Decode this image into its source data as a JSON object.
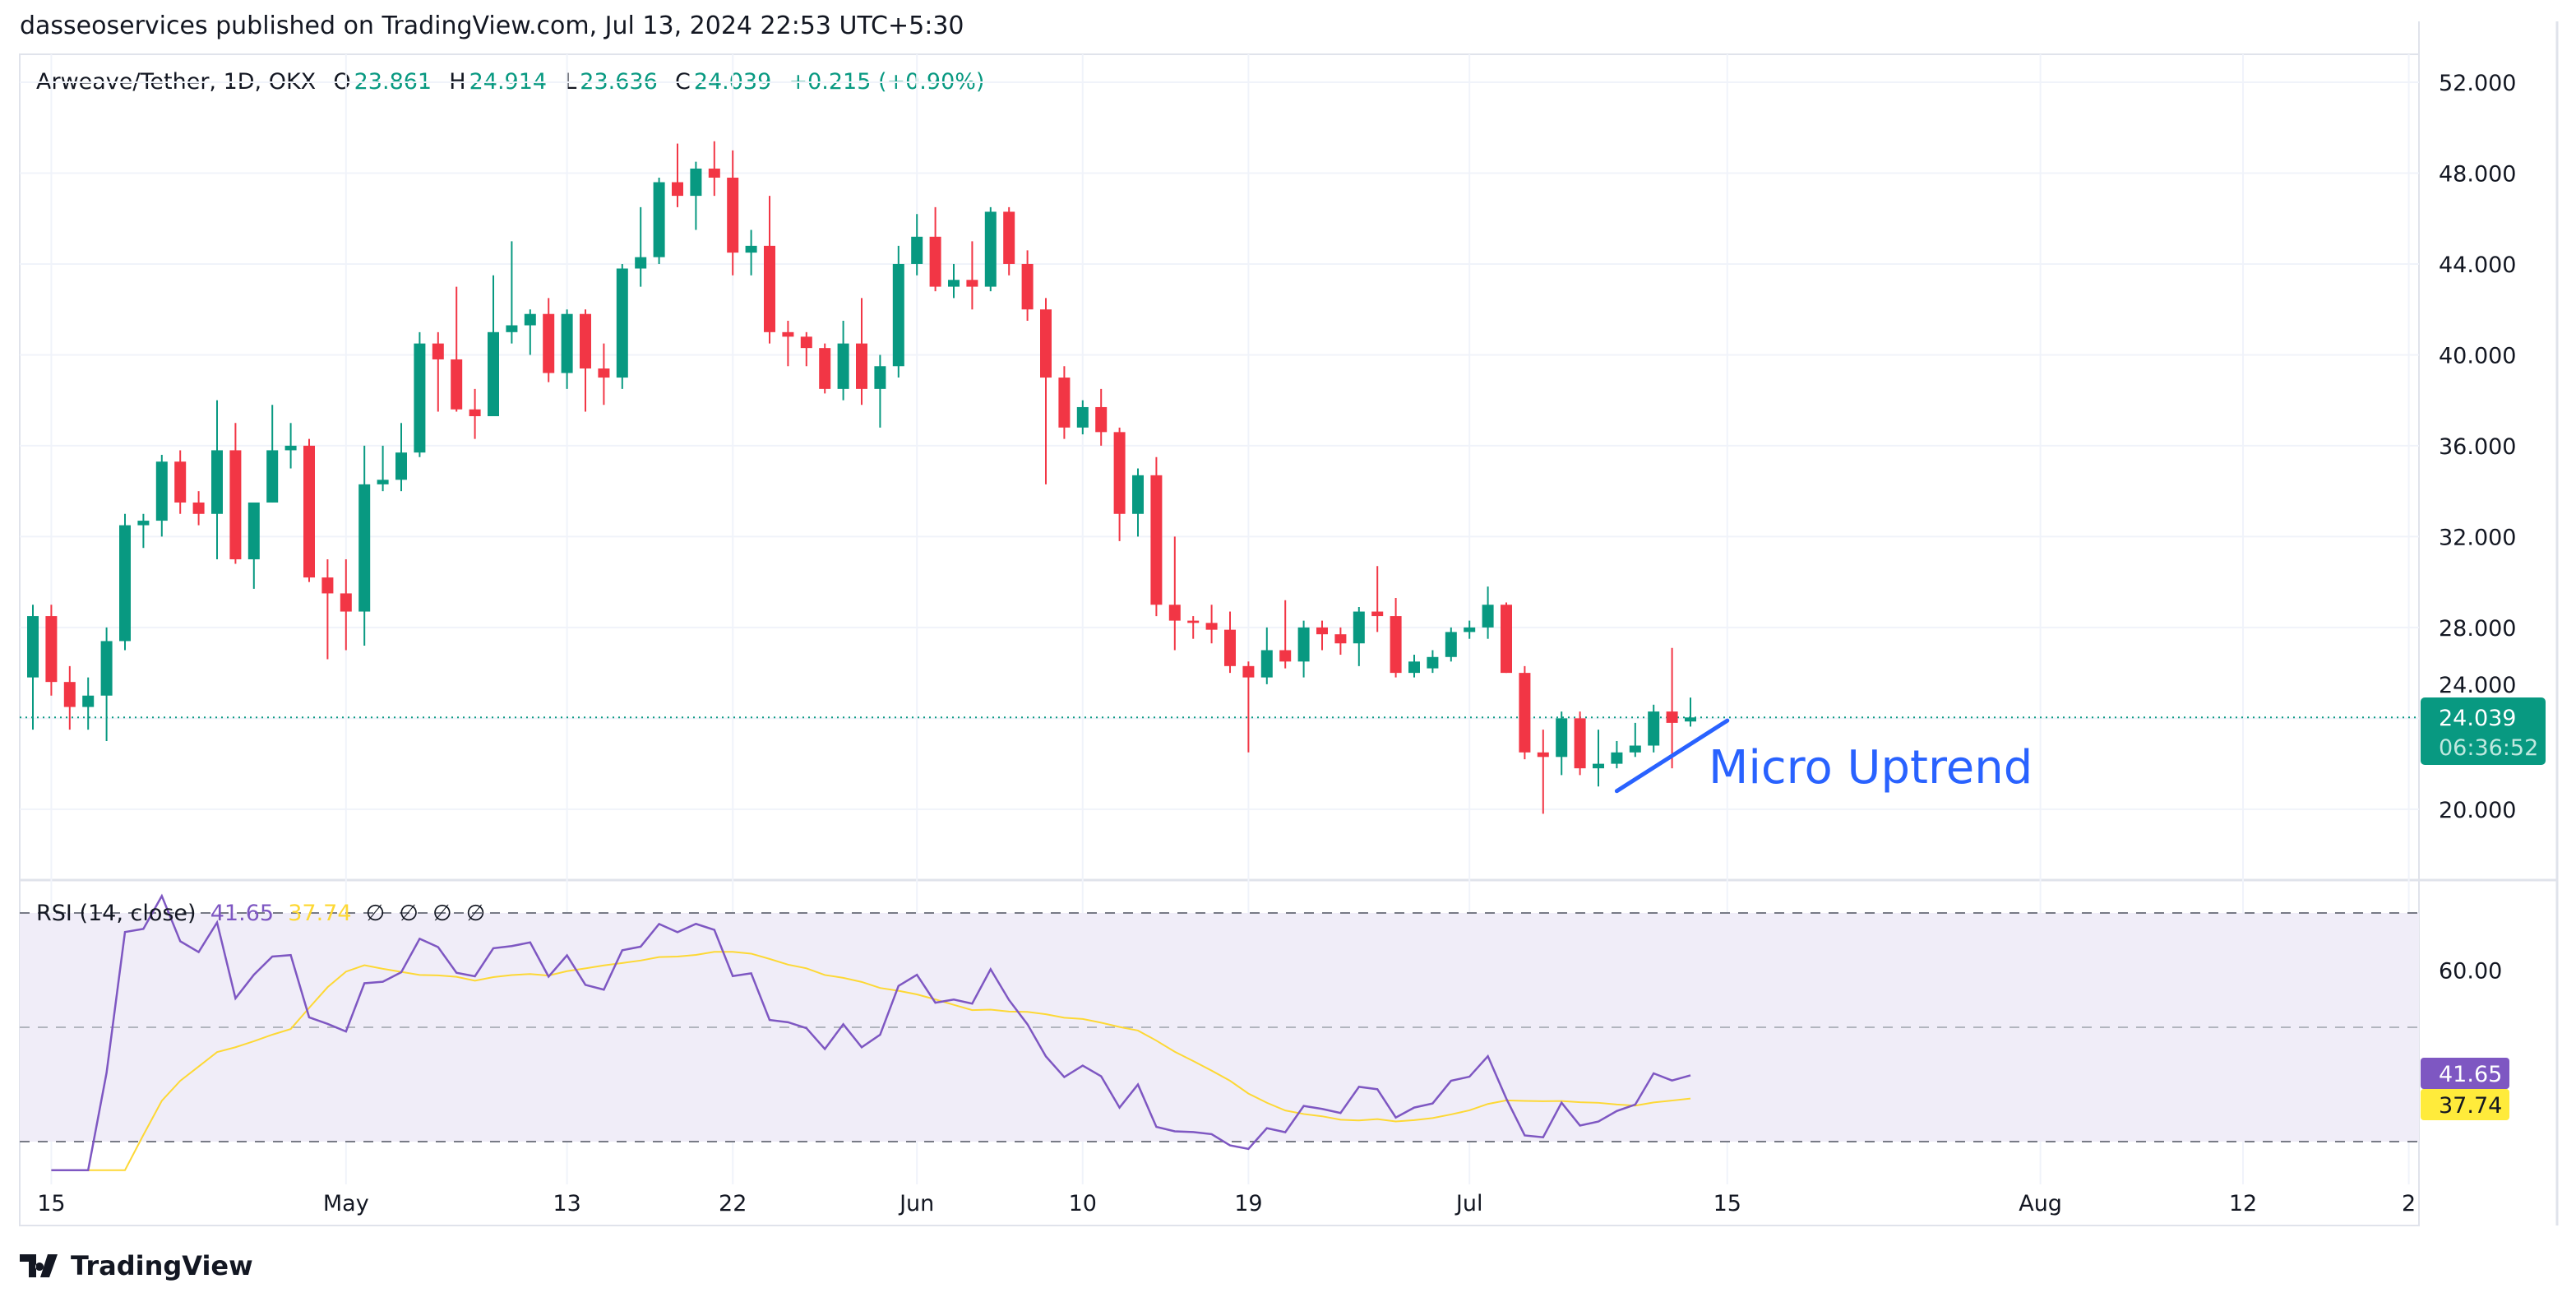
{
  "header": {
    "publisher": "dasseoservices published on TradingView.com, Jul 13, 2024 22:53 UTC+5:30"
  },
  "legend": {
    "symbol": "Arweave/Tether, 1D, OKX",
    "o_label": "O",
    "o": "23.861",
    "h_label": "H",
    "h": "24.914",
    "l_label": "L",
    "l": "23.636",
    "c_label": "C",
    "c": "24.039",
    "change": "+0.215 (+0.90%)"
  },
  "rsi_legend": {
    "name": "RSI (14, close)",
    "rsi": "41.65",
    "ma": "37.74",
    "extras": [
      "∅",
      "∅",
      "∅",
      "∅"
    ]
  },
  "price_badge": {
    "price": "24.039",
    "countdown": "06:36:52"
  },
  "rsi_badges": {
    "rsi": "41.65",
    "ma": "37.74"
  },
  "annotation": {
    "text": "Micro Uptrend"
  },
  "footer": {
    "logo_text": "TradingView"
  },
  "colors": {
    "up": "#089981",
    "down": "#f23645",
    "rsi": "#7e57c2",
    "rsi_ma": "#fdd835",
    "annotation": "#2962ff",
    "rsi_band": "#f0edf8"
  },
  "chart_data": {
    "type": "candlestick",
    "title": "Arweave/Tether, 1D, OKX",
    "start_date": "2024-04-14",
    "yaxis": {
      "ticks": [
        "20.000",
        "24.000",
        "28.000",
        "32.000",
        "36.000",
        "40.000",
        "44.000",
        "48.000",
        "52.000"
      ],
      "range": [
        17,
        54
      ]
    },
    "rsi_axis": {
      "ticks": [
        "60.00"
      ],
      "bands": [
        30,
        50,
        70
      ]
    },
    "xaxis": {
      "ticks": [
        {
          "label": "15",
          "day": 1
        },
        {
          "label": "May",
          "day": 17
        },
        {
          "label": "13",
          "day": 29
        },
        {
          "label": "22",
          "day": 38
        },
        {
          "label": "Jun",
          "day": 48
        },
        {
          "label": "10",
          "day": 57
        },
        {
          "label": "19",
          "day": 66
        },
        {
          "label": "Jul",
          "day": 78
        },
        {
          "label": "15",
          "day": 92
        },
        {
          "label": "Aug",
          "day": 109
        },
        {
          "label": "12",
          "day": 120
        },
        {
          "label": "2",
          "day": 129
        }
      ]
    },
    "ohlc": [
      [
        25.8,
        29,
        23.5,
        28.5
      ],
      [
        28.5,
        29,
        25,
        25.6
      ],
      [
        25.6,
        26.3,
        23.5,
        24.5
      ],
      [
        24.5,
        25.8,
        23.5,
        25
      ],
      [
        25,
        28,
        23,
        27.4
      ],
      [
        27.4,
        33,
        27,
        32.5
      ],
      [
        32.5,
        33,
        31.5,
        32.7
      ],
      [
        32.7,
        35.6,
        32,
        35.3
      ],
      [
        35.3,
        35.8,
        33,
        33.5
      ],
      [
        33.5,
        34,
        32.5,
        33
      ],
      [
        33,
        38,
        31,
        35.8
      ],
      [
        35.8,
        37,
        30.8,
        31
      ],
      [
        31,
        33.5,
        29.7,
        33.5
      ],
      [
        33.5,
        37.8,
        33.5,
        35.8
      ],
      [
        35.8,
        37,
        35,
        36
      ],
      [
        36,
        36.3,
        30,
        30.2
      ],
      [
        30.2,
        31,
        26.6,
        29.5
      ],
      [
        29.5,
        31,
        27,
        28.7
      ],
      [
        28.7,
        36,
        27.2,
        34.3
      ],
      [
        34.3,
        36,
        34,
        34.5
      ],
      [
        34.5,
        37,
        34,
        35.7
      ],
      [
        35.7,
        41,
        35.5,
        40.5
      ],
      [
        40.5,
        41,
        37.5,
        39.8
      ],
      [
        39.8,
        43,
        37.5,
        37.6
      ],
      [
        37.6,
        38.5,
        36.3,
        37.3
      ],
      [
        37.3,
        43.5,
        37.3,
        41
      ],
      [
        41,
        45,
        40.5,
        41.3
      ],
      [
        41.3,
        42,
        40,
        41.8
      ],
      [
        41.8,
        42.5,
        38.8,
        39.2
      ],
      [
        39.2,
        42,
        38.5,
        41.8
      ],
      [
        41.8,
        42,
        37.5,
        39.4
      ],
      [
        39.4,
        40.5,
        37.8,
        39
      ],
      [
        39,
        44,
        38.5,
        43.8
      ],
      [
        43.8,
        46.5,
        43,
        44.3
      ],
      [
        44.3,
        47.8,
        44,
        47.6
      ],
      [
        47.6,
        49.3,
        46.5,
        47
      ],
      [
        47,
        48.5,
        45.5,
        48.2
      ],
      [
        48.2,
        49.4,
        47,
        47.8
      ],
      [
        47.8,
        49,
        43.5,
        44.5
      ],
      [
        44.5,
        45.5,
        43.5,
        44.8
      ],
      [
        44.8,
        47,
        40.5,
        41
      ],
      [
        41,
        41.5,
        39.5,
        40.8
      ],
      [
        40.8,
        41,
        39.5,
        40.3
      ],
      [
        40.3,
        40.5,
        38.3,
        38.5
      ],
      [
        38.5,
        41.5,
        38,
        40.5
      ],
      [
        40.5,
        42.5,
        37.8,
        38.5
      ],
      [
        38.5,
        40,
        36.8,
        39.5
      ],
      [
        39.5,
        44.8,
        39,
        44
      ],
      [
        44,
        46.2,
        43.5,
        45.2
      ],
      [
        45.2,
        46.5,
        42.8,
        43
      ],
      [
        43,
        44,
        42.5,
        43.3
      ],
      [
        43.3,
        45,
        42,
        43
      ],
      [
        43,
        46.5,
        42.8,
        46.3
      ],
      [
        46.3,
        46.5,
        43.5,
        44
      ],
      [
        44,
        44.6,
        41.5,
        42
      ],
      [
        42,
        42.5,
        34.3,
        39
      ],
      [
        39,
        39.5,
        36.3,
        36.8
      ],
      [
        36.8,
        38,
        36.5,
        37.7
      ],
      [
        37.7,
        38.5,
        36,
        36.6
      ],
      [
        36.6,
        36.8,
        31.8,
        33
      ],
      [
        33,
        35,
        32,
        34.7
      ],
      [
        34.7,
        35.5,
        28.5,
        29
      ],
      [
        29,
        32,
        27,
        28.3
      ],
      [
        28.3,
        28.5,
        27.5,
        28.2
      ],
      [
        28.2,
        29,
        27.3,
        27.9
      ],
      [
        27.9,
        28.7,
        26,
        26.3
      ],
      [
        26.3,
        26.5,
        22.5,
        25.8
      ],
      [
        25.8,
        28,
        25.5,
        27
      ],
      [
        27,
        29.2,
        26.2,
        26.5
      ],
      [
        26.5,
        28.3,
        25.8,
        28
      ],
      [
        28,
        28.3,
        27,
        27.7
      ],
      [
        27.7,
        28,
        26.8,
        27.3
      ],
      [
        27.3,
        28.9,
        26.3,
        28.7
      ],
      [
        28.7,
        30.7,
        27.8,
        28.5
      ],
      [
        28.5,
        29.3,
        25.8,
        26
      ],
      [
        26,
        26.8,
        25.8,
        26.5
      ],
      [
        26.2,
        27,
        26,
        26.7
      ],
      [
        26.7,
        28,
        26.5,
        27.8
      ],
      [
        27.8,
        28.3,
        27.5,
        28
      ],
      [
        28,
        29.8,
        27.5,
        29
      ],
      [
        29,
        29.1,
        26,
        26
      ],
      [
        26,
        26.3,
        22.2,
        22.5
      ],
      [
        22.5,
        23.5,
        19.8,
        22.3
      ],
      [
        22.3,
        24.3,
        21.5,
        24
      ],
      [
        24,
        24.3,
        21.5,
        21.8
      ],
      [
        21.8,
        23.5,
        21,
        22
      ],
      [
        22,
        23,
        21.8,
        22.5
      ],
      [
        22.5,
        23.8,
        22.3,
        22.8
      ],
      [
        22.8,
        24.6,
        22.5,
        24.3
      ],
      [
        24.3,
        27.1,
        21.8,
        23.8
      ],
      [
        23.861,
        24.914,
        23.636,
        24.039
      ]
    ],
    "last_price": 24.039,
    "trendline": {
      "from": {
        "day": 87,
        "price": 20.8
      },
      "to": {
        "day": 93,
        "price": 23.9
      }
    },
    "rsi": {
      "period": 14,
      "ma_period": 14,
      "last_rsi": 41.65,
      "last_ma": 37.74
    }
  }
}
